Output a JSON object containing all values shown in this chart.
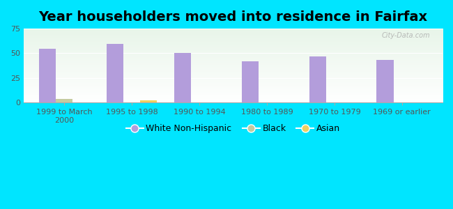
{
  "title": "Year householders moved into residence in Fairfax",
  "categories": [
    "1999 to March\n2000",
    "1995 to 1998",
    "1990 to 1994",
    "1980 to 1989",
    "1970 to 1979",
    "1969 or earlier"
  ],
  "white_values": [
    54.5,
    59.5,
    50.0,
    41.5,
    46.5,
    43.5
  ],
  "black_values": [
    3.5,
    0.0,
    0.0,
    0.0,
    0.0,
    0.0
  ],
  "asian_values": [
    0.0,
    2.5,
    0.0,
    0.0,
    0.0,
    0.0
  ],
  "white_color": "#b39ddb",
  "black_color": "#c5cba0",
  "asian_color": "#f0d060",
  "ylim": [
    0,
    75
  ],
  "yticks": [
    0,
    25,
    50,
    75
  ],
  "background_outer": "#00e5ff",
  "background_plot_top": "#e8f5e9",
  "background_plot_bottom": "#ffffff",
  "bar_width": 0.25,
  "title_fontsize": 14,
  "tick_fontsize": 8,
  "legend_fontsize": 9,
  "watermark": "City-Data.com"
}
